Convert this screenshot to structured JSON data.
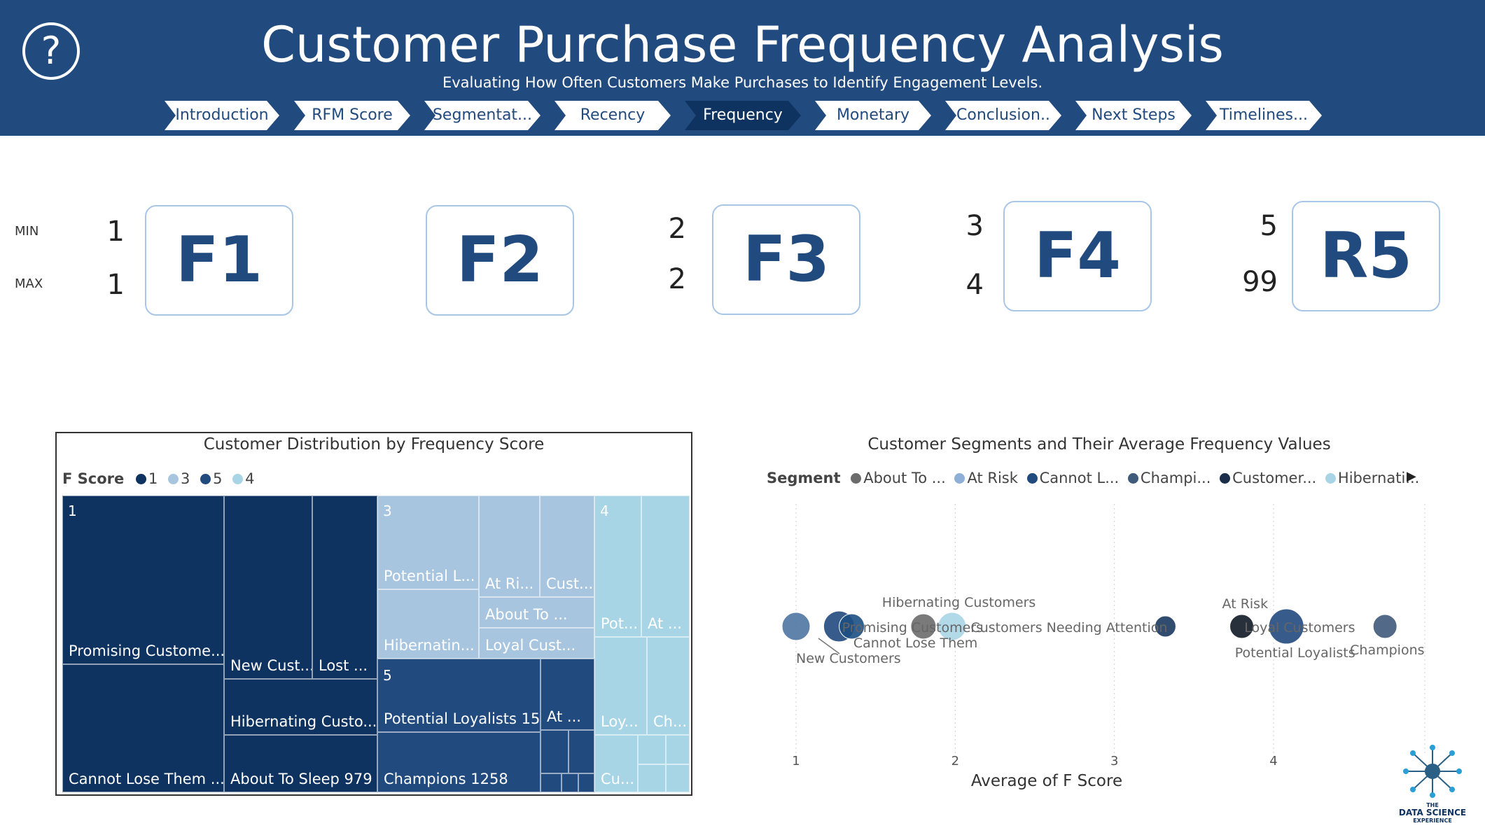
{
  "header": {
    "title": "Customer Purchase Frequency Analysis",
    "subtitle": "Evaluating How Often Customers Make Purchases to Identify Engagement Levels.",
    "help_icon": "question-circle-icon",
    "help_glyph": "?",
    "nav": [
      {
        "label": "Introduction"
      },
      {
        "label": "RFM Score"
      },
      {
        "label": "Segmentat..."
      },
      {
        "label": "Recency"
      },
      {
        "label": "Frequency",
        "active": true
      },
      {
        "label": "Monetary"
      },
      {
        "label": "Conclusion.."
      },
      {
        "label": "Next Steps"
      },
      {
        "label": "Timelines..."
      }
    ]
  },
  "score_cards": {
    "min_label": "MIN",
    "max_label": "MAX",
    "cards": [
      {
        "label": "F1",
        "min": "1",
        "max": "1"
      },
      {
        "label": "F2",
        "min": "",
        "max": ""
      },
      {
        "label": "F3",
        "min": "2",
        "max": "2"
      },
      {
        "label": "F4",
        "min": "3",
        "max": "4"
      },
      {
        "label": "R5",
        "min": "5",
        "max": "99"
      }
    ]
  },
  "chart_data": [
    {
      "type": "treemap",
      "title": "Customer Distribution by Frequency Score",
      "legend_title": "F Score",
      "legend": [
        {
          "name": "1",
          "color": "#0f3360"
        },
        {
          "name": "3",
          "color": "#a8c5e0"
        },
        {
          "name": "5",
          "color": "#214a7e"
        },
        {
          "name": "4",
          "color": "#a8d5e6"
        }
      ],
      "groups": [
        {
          "name": "1",
          "labels": [
            "Promising Custome...",
            "Cannot Lose Them ...",
            "New Cust...",
            "Lost ...",
            "Hibernating Custo...",
            "About To Sleep 979"
          ]
        },
        {
          "name": "3",
          "labels": [
            "Potential L...",
            "At Ri...",
            "Cust...",
            "About To ...",
            "Hibernatin...",
            "Loyal Cust..."
          ]
        },
        {
          "name": "5",
          "labels": [
            "Potential Loyalists 15...",
            "At ...",
            "Champions 1258"
          ]
        },
        {
          "name": "4",
          "labels": [
            "Pot...",
            "At ...",
            "Loy...",
            "Ch...",
            "Cu..."
          ]
        }
      ]
    },
    {
      "type": "scatter",
      "title": "Customer Segments and Their Average Frequency Values",
      "legend_title": "Segment",
      "legend": [
        {
          "name": "About To ...",
          "color": "#6b6b6b"
        },
        {
          "name": "At Risk",
          "color": "#8fb0d6"
        },
        {
          "name": "Cannot L...",
          "color": "#214a7e"
        },
        {
          "name": "Champi...",
          "color": "#3f5a7a"
        },
        {
          "name": "Customer...",
          "color": "#1a2e4a"
        },
        {
          "name": "Hibernati...",
          "color": "#a8d5e6"
        }
      ],
      "legend_more_icon": "triangle-right-icon",
      "legend_more_glyph": "▶",
      "xlabel": "Average of F Score",
      "xticks": [
        1,
        2,
        3,
        4
      ],
      "xlim": [
        1,
        4.95
      ],
      "points": [
        {
          "label": "New Customers",
          "x": 1.0,
          "color": "#4f76a3"
        },
        {
          "label": "",
          "x": 1.27,
          "color": "#214a7e"
        },
        {
          "label": "Promising Customers",
          "x": 1.35,
          "color": "#1c4f83"
        },
        {
          "label": "Cannot Lose Them",
          "x": 1.8,
          "color": "#6b6b6b"
        },
        {
          "label": "Hibernating Customers",
          "x": 1.98,
          "color": "#a8d5e6"
        },
        {
          "label": "Customers Needing Attention",
          "x": 3.32,
          "color": "#1a3a5f"
        },
        {
          "label": "At Risk",
          "x": 3.8,
          "color": "#111a26"
        },
        {
          "label": "Loyal Customers",
          "x": 4.08,
          "color": "#214a7e"
        },
        {
          "label": "Potential Loyalists",
          "x": 4.1,
          "color": "#214a7e"
        },
        {
          "label": "Champions",
          "x": 4.7,
          "color": "#3f5a7a"
        }
      ]
    }
  ],
  "logo": {
    "text_line1": "THE",
    "text_line2": "DATA SCIENCE",
    "text_line3": "EXPERIENCE"
  }
}
